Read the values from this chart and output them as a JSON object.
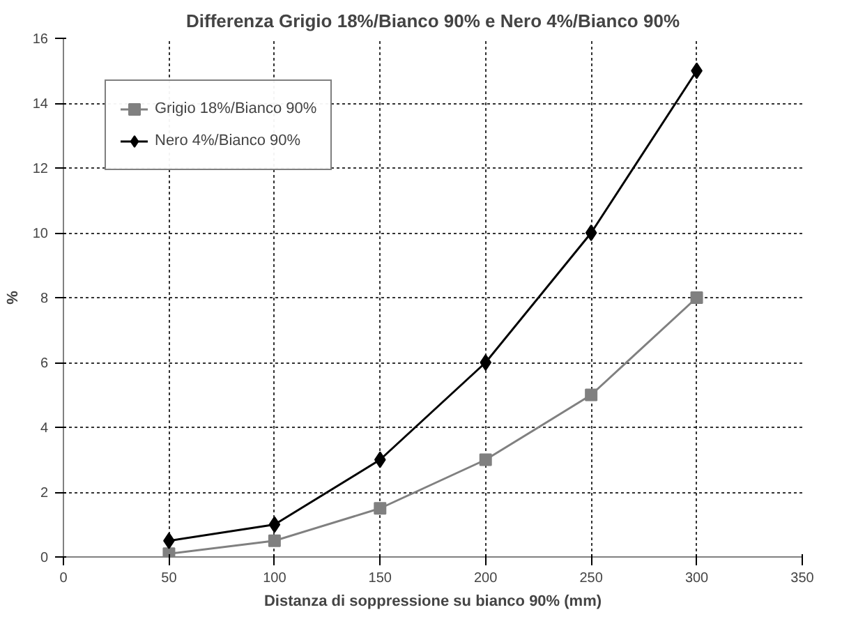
{
  "chart_data": {
    "type": "line",
    "title": "Differenza Grigio 18%/Bianco 90% e Nero 4%/Bianco 90%",
    "xlabel": "Distanza di soppressione su bianco 90% (mm)",
    "ylabel": "%",
    "x": [
      50,
      100,
      150,
      200,
      250,
      300
    ],
    "series": [
      {
        "name": "Grigio 18%/Bianco 90%",
        "color": "#808080",
        "marker": "square",
        "values": [
          0.1,
          0.5,
          1.5,
          3,
          5,
          8
        ]
      },
      {
        "name": "Nero 4%/Bianco 90%",
        "color": "#000000",
        "marker": "diamond",
        "values": [
          0.5,
          1,
          3,
          6,
          10,
          15
        ]
      }
    ],
    "xlim": [
      0,
      350
    ],
    "xticks": [
      0,
      50,
      100,
      150,
      200,
      250,
      300,
      350
    ],
    "ylim": [
      0,
      16
    ],
    "yticks": [
      0,
      2,
      4,
      6,
      8,
      10,
      12,
      14,
      16
    ],
    "grid": true,
    "legend": "top left",
    "line_style": "solid"
  }
}
